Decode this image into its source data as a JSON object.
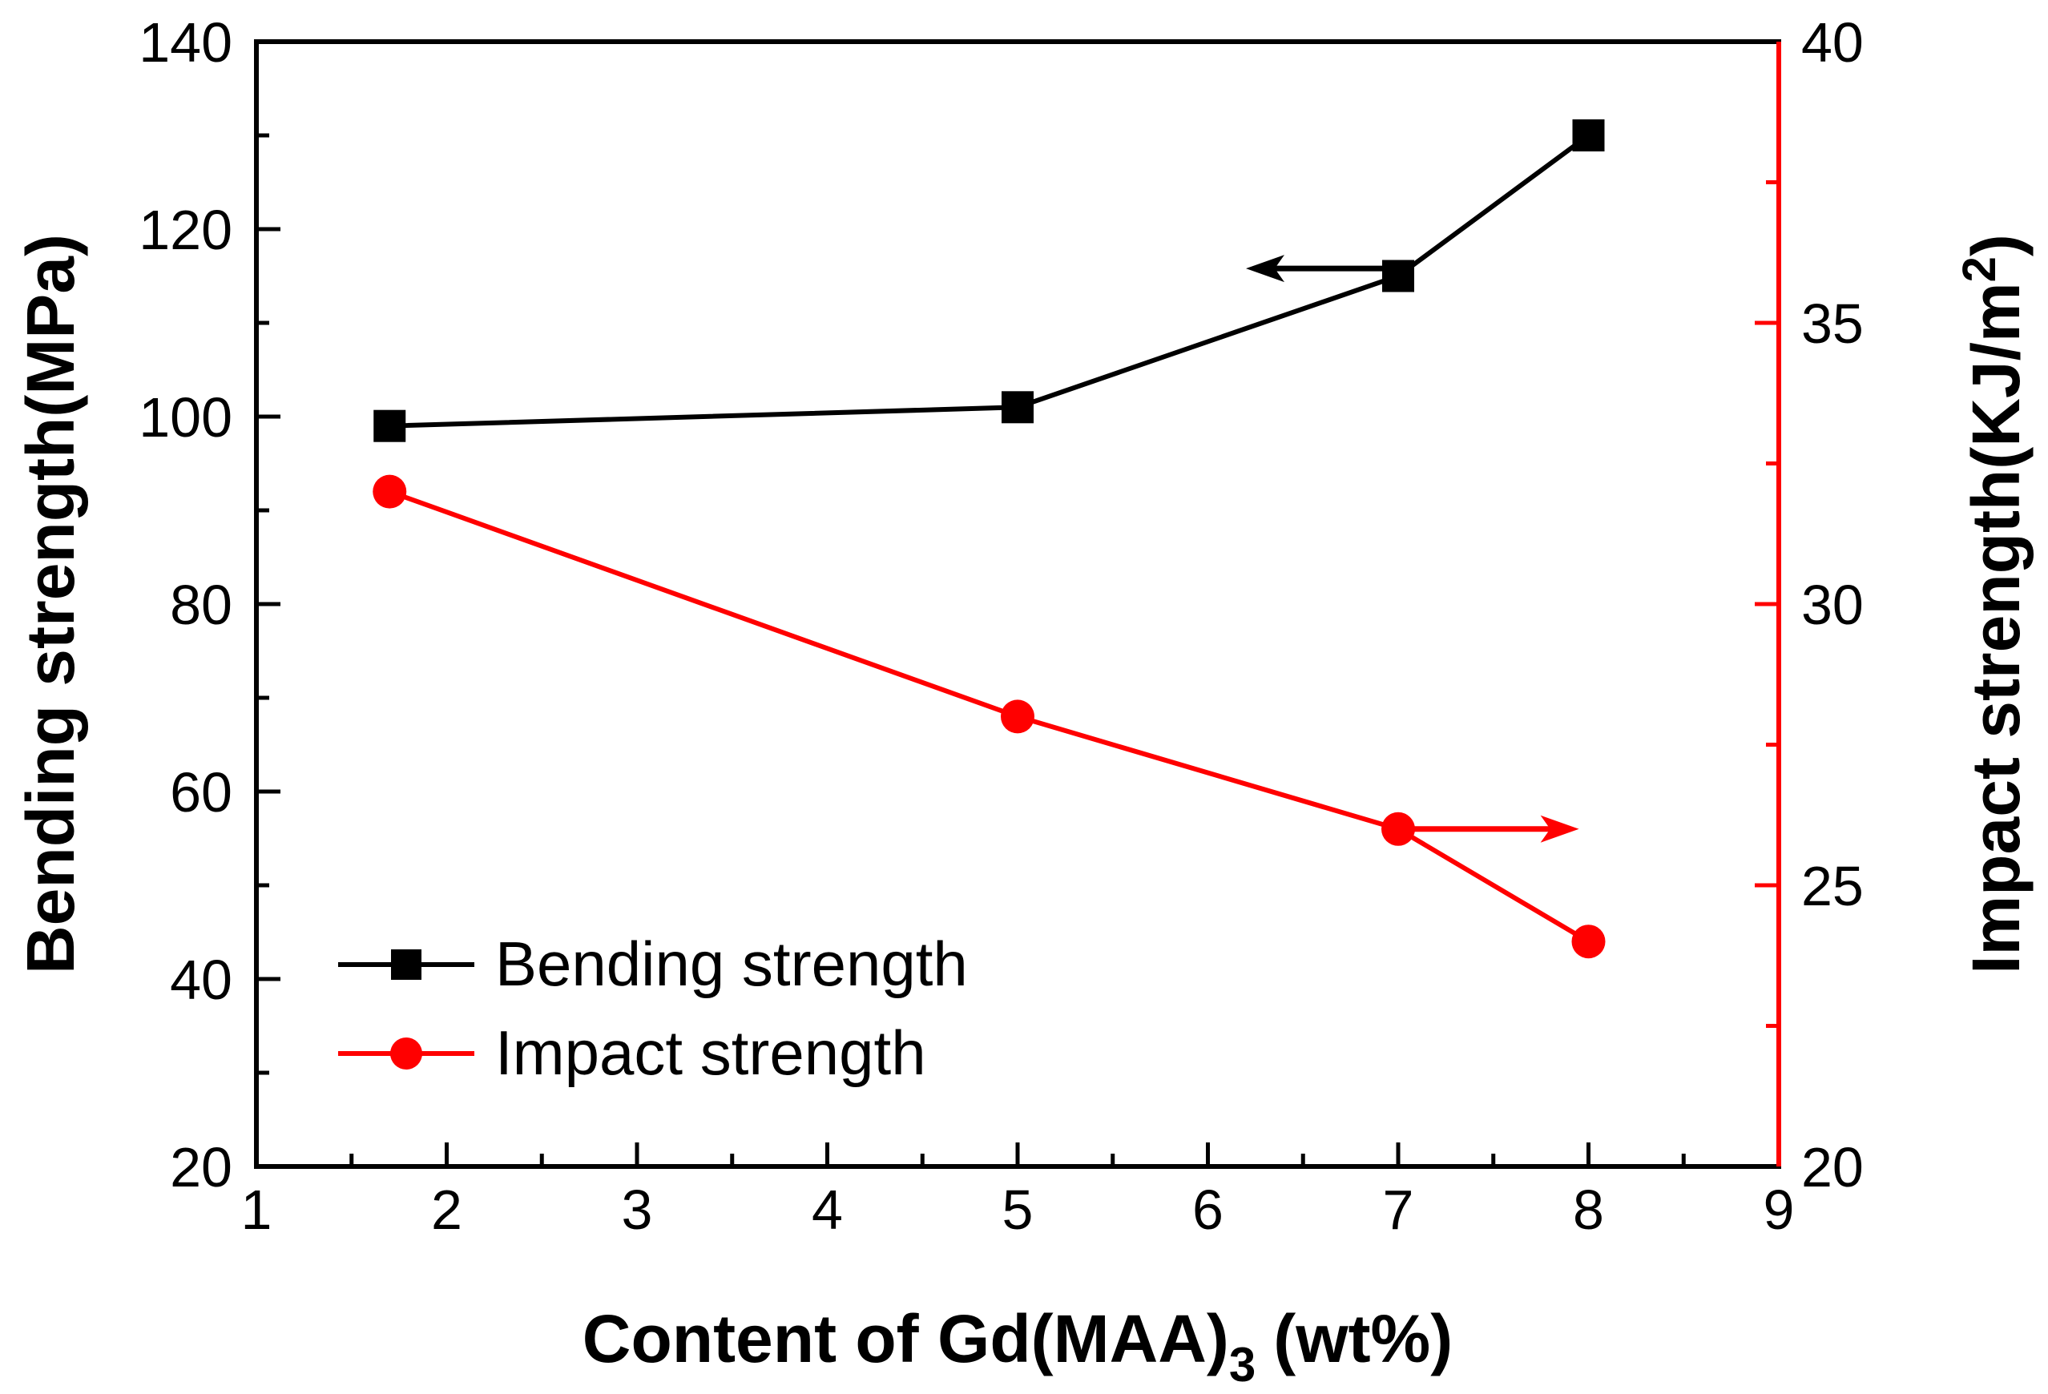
{
  "chart_data": {
    "type": "line",
    "title": "",
    "xlabel": "Content of Gd(MAA)",
    "xlabel_subscript": "3",
    "xlabel_unit": "(wt%)",
    "ylabel_left": "Bending strength(MPa)",
    "ylabel_right": "Impact strength(KJ/m",
    "ylabel_right_superscript": "2",
    "ylabel_right_close": ")",
    "xlim": [
      1,
      9
    ],
    "ylim_left": [
      20,
      140
    ],
    "ylim_right": [
      20,
      40
    ],
    "x_ticks": [
      "1",
      "2",
      "3",
      "4",
      "5",
      "6",
      "7",
      "8",
      "9"
    ],
    "y_left_ticks": [
      "20",
      "40",
      "60",
      "80",
      "100",
      "120",
      "140"
    ],
    "y_right_ticks": [
      "20",
      "25",
      "30",
      "35",
      "40"
    ],
    "legend_position": "bottom-left",
    "series": [
      {
        "name": "Bending strength",
        "axis": "left",
        "color": "#000000",
        "marker": "square",
        "x": [
          1.7,
          5.0,
          7.0,
          8.0
        ],
        "values": [
          99,
          101,
          115,
          130
        ],
        "arrow": {
          "direction": "left",
          "x_from": 7.0,
          "x_to": 6.2,
          "y": 115.8
        }
      },
      {
        "name": "Impact strength",
        "axis": "right",
        "color": "#ff0000",
        "marker": "circle",
        "x": [
          1.7,
          5.0,
          7.0,
          8.0
        ],
        "values": [
          32,
          28,
          26,
          24
        ],
        "arrow": {
          "direction": "right",
          "x_from": 7.0,
          "x_to": 7.95,
          "y": 26
        }
      }
    ]
  }
}
